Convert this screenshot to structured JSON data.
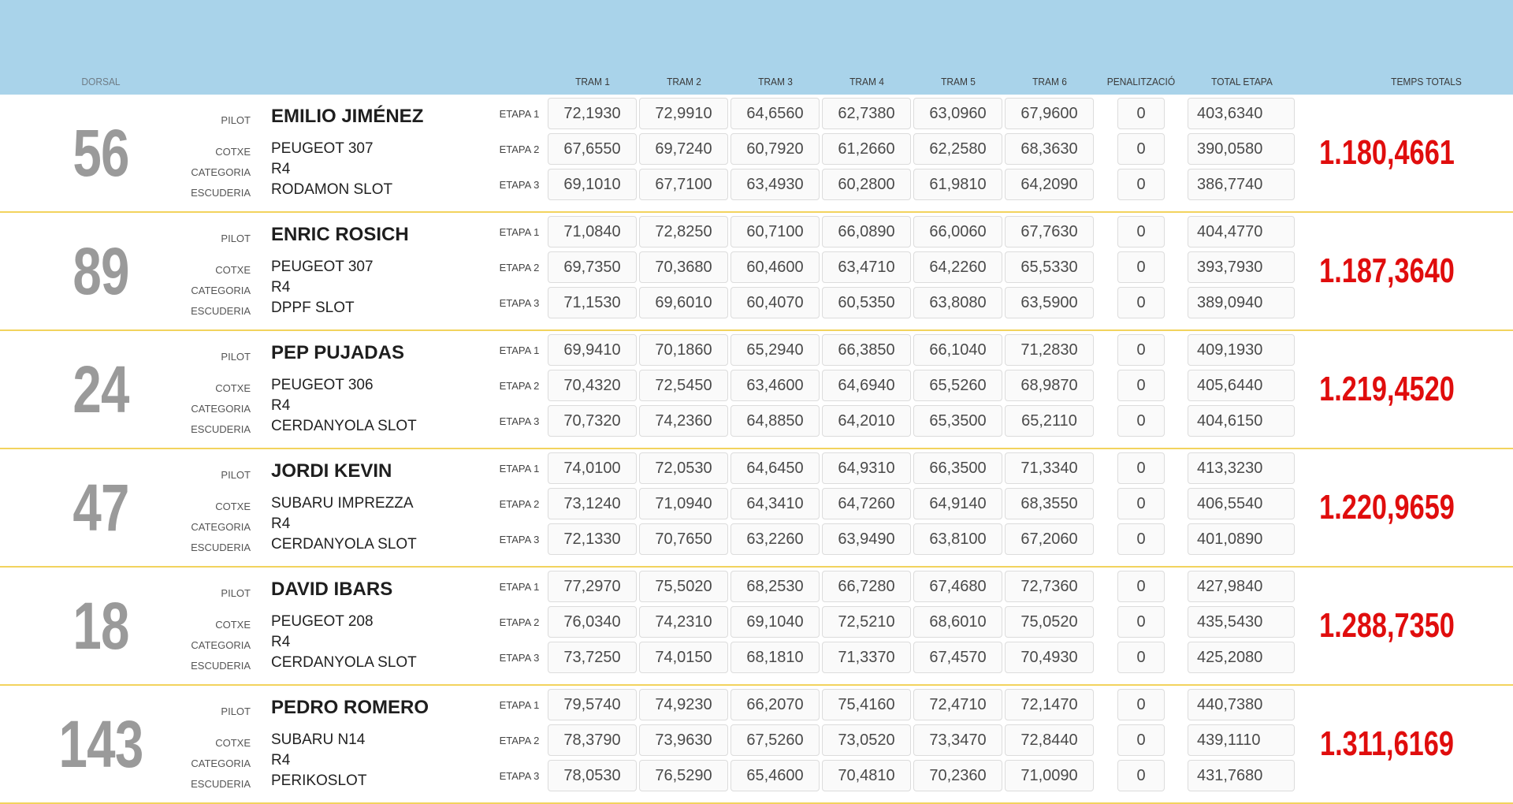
{
  "header": {
    "columns": {
      "dorsal": "DORSAL",
      "tram1": "TRAM 1",
      "tram2": "TRAM 2",
      "tram3": "TRAM 3",
      "tram4": "TRAM 4",
      "tram5": "TRAM 5",
      "tram6": "TRAM 6",
      "penalitzacio": "PENALITZACIÓ",
      "total_etapa": "TOTAL ETAPA",
      "temps_totals": "TEMPS TOTALS"
    }
  },
  "labels": {
    "pilot": "PILOT",
    "cotxe": "COTXE",
    "categoria": "CATEGORIA",
    "escuderia": "ESCUDERIA"
  },
  "colors": {
    "header_band": "#a9d3ea",
    "row_divider": "#f2d35e",
    "dorsal_number": "#9a9a9a",
    "total_time": "#e00d0d"
  },
  "entries": [
    {
      "dorsal": "56",
      "pilot": "EMILIO JIMÉNEZ",
      "cotxe": "PEUGEOT 307",
      "categoria": "R4",
      "escuderia": "RODAMON SLOT",
      "temps_totals": "1.180,4661",
      "etapes": [
        {
          "label": "ETAPA 1",
          "trams": [
            "72,1930",
            "72,9910",
            "64,6560",
            "62,7380",
            "63,0960",
            "67,9600"
          ],
          "penalitzacio": "0",
          "total": "403,6340"
        },
        {
          "label": "ETAPA 2",
          "trams": [
            "67,6550",
            "69,7240",
            "60,7920",
            "61,2660",
            "62,2580",
            "68,3630"
          ],
          "penalitzacio": "0",
          "total": "390,0580"
        },
        {
          "label": "ETAPA 3",
          "trams": [
            "69,1010",
            "67,7100",
            "63,4930",
            "60,2800",
            "61,9810",
            "64,2090"
          ],
          "penalitzacio": "0",
          "total": "386,7740"
        }
      ]
    },
    {
      "dorsal": "89",
      "pilot": "ENRIC ROSICH",
      "cotxe": "PEUGEOT 307",
      "categoria": "R4",
      "escuderia": "DPPF SLOT",
      "temps_totals": "1.187,3640",
      "etapes": [
        {
          "label": "ETAPA 1",
          "trams": [
            "71,0840",
            "72,8250",
            "60,7100",
            "66,0890",
            "66,0060",
            "67,7630"
          ],
          "penalitzacio": "0",
          "total": "404,4770"
        },
        {
          "label": "ETAPA 2",
          "trams": [
            "69,7350",
            "70,3680",
            "60,4600",
            "63,4710",
            "64,2260",
            "65,5330"
          ],
          "penalitzacio": "0",
          "total": "393,7930"
        },
        {
          "label": "ETAPA 3",
          "trams": [
            "71,1530",
            "69,6010",
            "60,4070",
            "60,5350",
            "63,8080",
            "63,5900"
          ],
          "penalitzacio": "0",
          "total": "389,0940"
        }
      ]
    },
    {
      "dorsal": "24",
      "pilot": "PEP PUJADAS",
      "cotxe": "PEUGEOT 306",
      "categoria": "R4",
      "escuderia": "CERDANYOLA SLOT",
      "temps_totals": "1.219,4520",
      "etapes": [
        {
          "label": "ETAPA 1",
          "trams": [
            "69,9410",
            "70,1860",
            "65,2940",
            "66,3850",
            "66,1040",
            "71,2830"
          ],
          "penalitzacio": "0",
          "total": "409,1930"
        },
        {
          "label": "ETAPA 2",
          "trams": [
            "70,4320",
            "72,5450",
            "63,4600",
            "64,6940",
            "65,5260",
            "68,9870"
          ],
          "penalitzacio": "0",
          "total": "405,6440"
        },
        {
          "label": "ETAPA 3",
          "trams": [
            "70,7320",
            "74,2360",
            "64,8850",
            "64,2010",
            "65,3500",
            "65,2110"
          ],
          "penalitzacio": "0",
          "total": "404,6150"
        }
      ]
    },
    {
      "dorsal": "47",
      "pilot": "JORDI KEVIN",
      "cotxe": "SUBARU IMPREZZA",
      "categoria": "R4",
      "escuderia": "CERDANYOLA SLOT",
      "temps_totals": "1.220,9659",
      "etapes": [
        {
          "label": "ETAPA 1",
          "trams": [
            "74,0100",
            "72,0530",
            "64,6450",
            "64,9310",
            "66,3500",
            "71,3340"
          ],
          "penalitzacio": "0",
          "total": "413,3230"
        },
        {
          "label": "ETAPA 2",
          "trams": [
            "73,1240",
            "71,0940",
            "64,3410",
            "64,7260",
            "64,9140",
            "68,3550"
          ],
          "penalitzacio": "0",
          "total": "406,5540"
        },
        {
          "label": "ETAPA 3",
          "trams": [
            "72,1330",
            "70,7650",
            "63,2260",
            "63,9490",
            "63,8100",
            "67,2060"
          ],
          "penalitzacio": "0",
          "total": "401,0890"
        }
      ]
    },
    {
      "dorsal": "18",
      "pilot": "DAVID IBARS",
      "cotxe": "PEUGEOT 208",
      "categoria": "R4",
      "escuderia": "CERDANYOLA SLOT",
      "temps_totals": "1.288,7350",
      "etapes": [
        {
          "label": "ETAPA 1",
          "trams": [
            "77,2970",
            "75,5020",
            "68,2530",
            "66,7280",
            "67,4680",
            "72,7360"
          ],
          "penalitzacio": "0",
          "total": "427,9840"
        },
        {
          "label": "ETAPA 2",
          "trams": [
            "76,0340",
            "74,2310",
            "69,1040",
            "72,5210",
            "68,6010",
            "75,0520"
          ],
          "penalitzacio": "0",
          "total": "435,5430"
        },
        {
          "label": "ETAPA 3",
          "trams": [
            "73,7250",
            "74,0150",
            "68,1810",
            "71,3370",
            "67,4570",
            "70,4930"
          ],
          "penalitzacio": "0",
          "total": "425,2080"
        }
      ]
    },
    {
      "dorsal": "143",
      "pilot": "PEDRO ROMERO",
      "cotxe": "SUBARU N14",
      "categoria": "R4",
      "escuderia": "PERIKOSLOT",
      "temps_totals": "1.311,6169",
      "etapes": [
        {
          "label": "ETAPA 1",
          "trams": [
            "79,5740",
            "74,9230",
            "66,2070",
            "75,4160",
            "72,4710",
            "72,1470"
          ],
          "penalitzacio": "0",
          "total": "440,7380"
        },
        {
          "label": "ETAPA 2",
          "trams": [
            "78,3790",
            "73,9630",
            "67,5260",
            "73,0520",
            "73,3470",
            "72,8440"
          ],
          "penalitzacio": "0",
          "total": "439,1110"
        },
        {
          "label": "ETAPA 3",
          "trams": [
            "78,0530",
            "76,5290",
            "65,4600",
            "70,4810",
            "70,2360",
            "71,0090"
          ],
          "penalitzacio": "0",
          "total": "431,7680"
        }
      ]
    }
  ]
}
